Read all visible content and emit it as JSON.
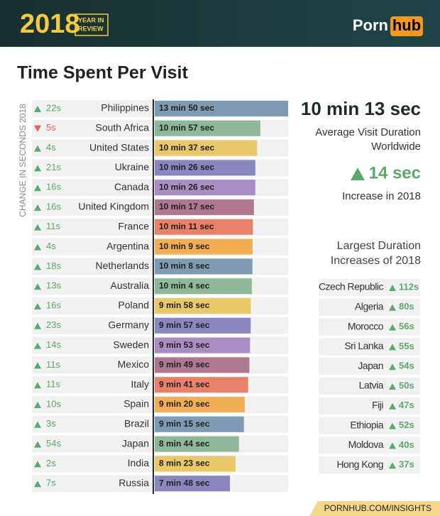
{
  "header": {
    "year": "2018",
    "badge_line1": "YEAR IN",
    "badge_line2": "REVIEW",
    "logo_left": "Porn",
    "logo_right": "hub"
  },
  "chart_data": {
    "type": "bar",
    "orientation": "horizontal",
    "title": "Time Spent Per Visit",
    "axis_label": "CHANGE IN SECONDS 2018",
    "categories": [
      "Philippines",
      "South Africa",
      "United States",
      "Ukraine",
      "Canada",
      "United Kingdom",
      "France",
      "Argentina",
      "Netherlands",
      "Australia",
      "Poland",
      "Germany",
      "Sweden",
      "Mexico",
      "Italy",
      "Spain",
      "Brazil",
      "Japan",
      "India",
      "Russia"
    ],
    "values": [
      830,
      657,
      637,
      626,
      626,
      617,
      611,
      609,
      608,
      604,
      598,
      597,
      593,
      589,
      581,
      560,
      555,
      524,
      503,
      468
    ],
    "value_labels": [
      "13 min 50 sec",
      "10 min 57 sec",
      "10 min 37 sec",
      "10 min 26 sec",
      "10 min 26 sec",
      "10 min 17 sec",
      "10 min 11 sec",
      "10 min 9 sec",
      "10 min 8 sec",
      "10 min 4 sec",
      "9 min 58 sec",
      "9 min 57 sec",
      "9 min 53 sec",
      "9 min 49 sec",
      "9 min 41 sec",
      "9 min 20 sec",
      "9 min 15 sec",
      "8 min 44 sec",
      "8 min 23 sec",
      "7 min 48 sec"
    ],
    "colors": [
      "#7f9bb3",
      "#8fb89a",
      "#e9c86a",
      "#8a86c0",
      "#a98ec4",
      "#b07890",
      "#e9816a",
      "#f2ae55"
    ],
    "xlim": [
      0,
      830
    ],
    "change": {
      "values": [
        22,
        -5,
        4,
        21,
        16,
        16,
        11,
        4,
        18,
        13,
        16,
        23,
        14,
        11,
        11,
        10,
        3,
        54,
        2,
        7
      ],
      "value_labels": [
        "22s",
        "5s",
        "4s",
        "21s",
        "16s",
        "16s",
        "11s",
        "4s",
        "18s",
        "13s",
        "16s",
        "23s",
        "14s",
        "11s",
        "11s",
        "10s",
        "3s",
        "54s",
        "2s",
        "7s"
      ]
    }
  },
  "summary": {
    "average": "10 min 13 sec",
    "average_line1": "Average Visit Duration",
    "average_line2": "Worldwide",
    "increase": "14 sec",
    "increase_label": "Increase in 2018"
  },
  "largest_increases": {
    "title_line1": "Largest Duration",
    "title_line2": "Increases of 2018",
    "countries": [
      "Czech Republic",
      "Algeria",
      "Morocco",
      "Sri Lanka",
      "Japan",
      "Latvia",
      "Fiji",
      "Ethiopia",
      "Moldova",
      "Hong Kong"
    ],
    "changes": [
      "112s",
      "80s",
      "56s",
      "55s",
      "54s",
      "50s",
      "47s",
      "52s",
      "40s",
      "37s"
    ]
  },
  "footer": "PORNHUB.COM/INSIGHTS"
}
